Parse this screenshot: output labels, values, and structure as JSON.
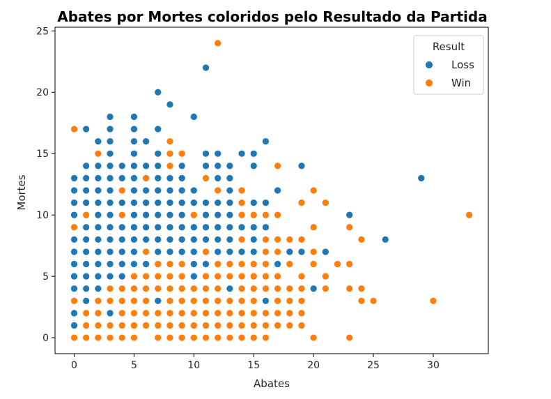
{
  "chart_data": {
    "type": "scatter",
    "title": "Abates por Mortes coloridos pelo Resultado da Partida",
    "xlabel": "Abates",
    "ylabel": "Mortes",
    "xlim": [
      -1.6,
      34.6
    ],
    "ylim": [
      -1.3,
      25.3
    ],
    "xticks": [
      0,
      5,
      10,
      15,
      20,
      25,
      30
    ],
    "yticks": [
      0,
      5,
      10,
      15,
      20,
      25
    ],
    "grid": false,
    "legend": {
      "title": "Result",
      "position": "top-right"
    },
    "series": [
      {
        "name": "Loss",
        "color": "#1f77b4",
        "points": [
          [
            0,
            1
          ],
          [
            0,
            2
          ],
          [
            0,
            4
          ],
          [
            0,
            5
          ],
          [
            0,
            6
          ],
          [
            0,
            7
          ],
          [
            0,
            8
          ],
          [
            0,
            10
          ],
          [
            0,
            11
          ],
          [
            0,
            12
          ],
          [
            0,
            13
          ],
          [
            1,
            3
          ],
          [
            1,
            4
          ],
          [
            1,
            5
          ],
          [
            1,
            6
          ],
          [
            1,
            7
          ],
          [
            1,
            8
          ],
          [
            1,
            9
          ],
          [
            1,
            11
          ],
          [
            1,
            12
          ],
          [
            1,
            13
          ],
          [
            1,
            14
          ],
          [
            1,
            17
          ],
          [
            2,
            4
          ],
          [
            2,
            5
          ],
          [
            2,
            6
          ],
          [
            2,
            7
          ],
          [
            2,
            8
          ],
          [
            2,
            9
          ],
          [
            2,
            10
          ],
          [
            2,
            11
          ],
          [
            2,
            12
          ],
          [
            2,
            13
          ],
          [
            2,
            14
          ],
          [
            2,
            16
          ],
          [
            3,
            2
          ],
          [
            3,
            5
          ],
          [
            3,
            6
          ],
          [
            3,
            7
          ],
          [
            3,
            8
          ],
          [
            3,
            9
          ],
          [
            3,
            10
          ],
          [
            3,
            11
          ],
          [
            3,
            12
          ],
          [
            3,
            13
          ],
          [
            3,
            14
          ],
          [
            3,
            15
          ],
          [
            3,
            16
          ],
          [
            3,
            17
          ],
          [
            3,
            18
          ],
          [
            4,
            5
          ],
          [
            4,
            6
          ],
          [
            4,
            7
          ],
          [
            4,
            8
          ],
          [
            4,
            9
          ],
          [
            4,
            11
          ],
          [
            4,
            12
          ],
          [
            4,
            13
          ],
          [
            4,
            14
          ],
          [
            5,
            6
          ],
          [
            5,
            7
          ],
          [
            5,
            8
          ],
          [
            5,
            9
          ],
          [
            5,
            10
          ],
          [
            5,
            11
          ],
          [
            5,
            12
          ],
          [
            5,
            13
          ],
          [
            5,
            14
          ],
          [
            5,
            15
          ],
          [
            5,
            16
          ],
          [
            5,
            17
          ],
          [
            5,
            18
          ],
          [
            6,
            6
          ],
          [
            6,
            8
          ],
          [
            6,
            9
          ],
          [
            6,
            10
          ],
          [
            6,
            11
          ],
          [
            6,
            12
          ],
          [
            6,
            14
          ],
          [
            6,
            16
          ],
          [
            7,
            3
          ],
          [
            7,
            7
          ],
          [
            7,
            8
          ],
          [
            7,
            9
          ],
          [
            7,
            10
          ],
          [
            7,
            11
          ],
          [
            7,
            12
          ],
          [
            7,
            13
          ],
          [
            7,
            14
          ],
          [
            7,
            15
          ],
          [
            7,
            17
          ],
          [
            7,
            20
          ],
          [
            8,
            7
          ],
          [
            8,
            8
          ],
          [
            8,
            9
          ],
          [
            8,
            10
          ],
          [
            8,
            11
          ],
          [
            8,
            12
          ],
          [
            8,
            13
          ],
          [
            8,
            19
          ],
          [
            9,
            7
          ],
          [
            9,
            8
          ],
          [
            9,
            9
          ],
          [
            9,
            10
          ],
          [
            9,
            11
          ],
          [
            9,
            12
          ],
          [
            9,
            13
          ],
          [
            9,
            14
          ],
          [
            10,
            5
          ],
          [
            10,
            6
          ],
          [
            10,
            7
          ],
          [
            10,
            8
          ],
          [
            10,
            9
          ],
          [
            10,
            11
          ],
          [
            10,
            12
          ],
          [
            10,
            18
          ],
          [
            11,
            6
          ],
          [
            11,
            8
          ],
          [
            11,
            9
          ],
          [
            11,
            10
          ],
          [
            11,
            11
          ],
          [
            11,
            14
          ],
          [
            11,
            15
          ],
          [
            11,
            22
          ],
          [
            12,
            7
          ],
          [
            12,
            8
          ],
          [
            12,
            9
          ],
          [
            12,
            10
          ],
          [
            12,
            11
          ],
          [
            12,
            13
          ],
          [
            12,
            14
          ],
          [
            12,
            15
          ],
          [
            13,
            4
          ],
          [
            13,
            7
          ],
          [
            13,
            8
          ],
          [
            13,
            9
          ],
          [
            13,
            10
          ],
          [
            13,
            11
          ],
          [
            13,
            12
          ],
          [
            13,
            13
          ],
          [
            13,
            14
          ],
          [
            14,
            7
          ],
          [
            14,
            9
          ],
          [
            14,
            15
          ],
          [
            15,
            7
          ],
          [
            15,
            8
          ],
          [
            15,
            9
          ],
          [
            15,
            11
          ],
          [
            15,
            14
          ],
          [
            15,
            15
          ],
          [
            16,
            3
          ],
          [
            16,
            9
          ],
          [
            16,
            11
          ],
          [
            16,
            16
          ],
          [
            17,
            6
          ],
          [
            17,
            12
          ],
          [
            18,
            7
          ],
          [
            19,
            7
          ],
          [
            19,
            14
          ],
          [
            20,
            4
          ],
          [
            21,
            7
          ],
          [
            23,
            10
          ],
          [
            26,
            8
          ],
          [
            29,
            13
          ]
        ]
      },
      {
        "name": "Win",
        "color": "#ff7f0e",
        "points": [
          [
            0,
            0
          ],
          [
            0,
            3
          ],
          [
            0,
            9
          ],
          [
            0,
            17
          ],
          [
            1,
            0
          ],
          [
            1,
            1
          ],
          [
            1,
            2
          ],
          [
            1,
            10
          ],
          [
            2,
            0
          ],
          [
            2,
            1
          ],
          [
            2,
            2
          ],
          [
            2,
            3
          ],
          [
            2,
            15
          ],
          [
            3,
            0
          ],
          [
            3,
            1
          ],
          [
            3,
            3
          ],
          [
            3,
            4
          ],
          [
            4,
            0
          ],
          [
            4,
            1
          ],
          [
            4,
            2
          ],
          [
            4,
            3
          ],
          [
            4,
            4
          ],
          [
            4,
            10
          ],
          [
            4,
            12
          ],
          [
            5,
            0
          ],
          [
            5,
            1
          ],
          [
            5,
            2
          ],
          [
            5,
            3
          ],
          [
            5,
            4
          ],
          [
            5,
            5
          ],
          [
            6,
            1
          ],
          [
            6,
            2
          ],
          [
            6,
            3
          ],
          [
            6,
            4
          ],
          [
            6,
            5
          ],
          [
            6,
            7
          ],
          [
            6,
            13
          ],
          [
            7,
            0
          ],
          [
            7,
            1
          ],
          [
            7,
            2
          ],
          [
            7,
            4
          ],
          [
            7,
            5
          ],
          [
            7,
            6
          ],
          [
            8,
            0
          ],
          [
            8,
            1
          ],
          [
            8,
            2
          ],
          [
            8,
            3
          ],
          [
            8,
            4
          ],
          [
            8,
            5
          ],
          [
            8,
            6
          ],
          [
            8,
            14
          ],
          [
            8,
            15
          ],
          [
            8,
            16
          ],
          [
            9,
            0
          ],
          [
            9,
            1
          ],
          [
            9,
            2
          ],
          [
            9,
            3
          ],
          [
            9,
            4
          ],
          [
            9,
            5
          ],
          [
            9,
            6
          ],
          [
            9,
            15
          ],
          [
            10,
            0
          ],
          [
            10,
            1
          ],
          [
            10,
            2
          ],
          [
            10,
            3
          ],
          [
            10,
            4
          ],
          [
            10,
            10
          ],
          [
            11,
            0
          ],
          [
            11,
            1
          ],
          [
            11,
            2
          ],
          [
            11,
            3
          ],
          [
            11,
            4
          ],
          [
            11,
            5
          ],
          [
            11,
            7
          ],
          [
            11,
            13
          ],
          [
            12,
            0
          ],
          [
            12,
            1
          ],
          [
            12,
            2
          ],
          [
            12,
            3
          ],
          [
            12,
            4
          ],
          [
            12,
            5
          ],
          [
            12,
            6
          ],
          [
            12,
            12
          ],
          [
            12,
            24
          ],
          [
            13,
            0
          ],
          [
            13,
            1
          ],
          [
            13,
            2
          ],
          [
            13,
            3
          ],
          [
            13,
            5
          ],
          [
            13,
            6
          ],
          [
            14,
            0
          ],
          [
            14,
            1
          ],
          [
            14,
            2
          ],
          [
            14,
            3
          ],
          [
            14,
            4
          ],
          [
            14,
            5
          ],
          [
            14,
            6
          ],
          [
            14,
            8
          ],
          [
            14,
            10
          ],
          [
            14,
            11
          ],
          [
            14,
            12
          ],
          [
            15,
            0
          ],
          [
            15,
            1
          ],
          [
            15,
            2
          ],
          [
            15,
            3
          ],
          [
            15,
            4
          ],
          [
            15,
            5
          ],
          [
            15,
            6
          ],
          [
            15,
            10
          ],
          [
            16,
            0
          ],
          [
            16,
            1
          ],
          [
            16,
            2
          ],
          [
            16,
            4
          ],
          [
            16,
            5
          ],
          [
            16,
            6
          ],
          [
            16,
            7
          ],
          [
            16,
            8
          ],
          [
            16,
            10
          ],
          [
            17,
            1
          ],
          [
            17,
            2
          ],
          [
            17,
            3
          ],
          [
            17,
            4
          ],
          [
            17,
            5
          ],
          [
            17,
            7
          ],
          [
            17,
            8
          ],
          [
            17,
            10
          ],
          [
            17,
            14
          ],
          [
            18,
            1
          ],
          [
            18,
            2
          ],
          [
            18,
            3
          ],
          [
            18,
            4
          ],
          [
            18,
            6
          ],
          [
            18,
            8
          ],
          [
            19,
            1
          ],
          [
            19,
            2
          ],
          [
            19,
            3
          ],
          [
            19,
            4
          ],
          [
            19,
            5
          ],
          [
            19,
            8
          ],
          [
            19,
            11
          ],
          [
            20,
            0
          ],
          [
            20,
            6
          ],
          [
            20,
            7
          ],
          [
            20,
            9
          ],
          [
            20,
            12
          ],
          [
            21,
            4
          ],
          [
            21,
            5
          ],
          [
            21,
            11
          ],
          [
            22,
            6
          ],
          [
            23,
            0
          ],
          [
            23,
            4
          ],
          [
            23,
            6
          ],
          [
            23,
            9
          ],
          [
            24,
            3
          ],
          [
            24,
            4
          ],
          [
            24,
            8
          ],
          [
            25,
            3
          ],
          [
            30,
            3
          ],
          [
            33,
            10
          ]
        ]
      }
    ]
  }
}
